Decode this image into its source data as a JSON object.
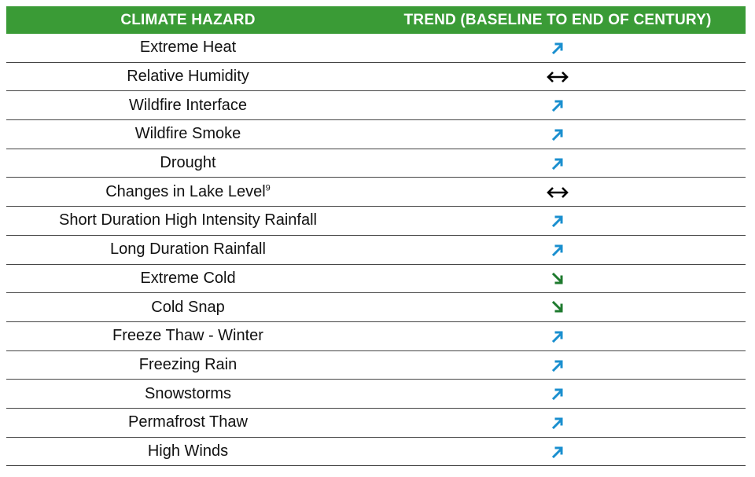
{
  "table": {
    "headers": [
      "CLIMATE HAZARD",
      "TREND  (BASELINE TO END OF CENTURY)"
    ],
    "colors": {
      "header_bg": "#3a9b36",
      "increase": "#1a8fcf",
      "decrease": "#1e7a2e",
      "no_change": "#000000"
    },
    "rows": [
      {
        "hazard": "Extreme Heat",
        "sup": "",
        "trend": "increase"
      },
      {
        "hazard": "Relative Humidity",
        "sup": "",
        "trend": "no-change"
      },
      {
        "hazard": "Wildfire Interface",
        "sup": "",
        "trend": "increase"
      },
      {
        "hazard": "Wildfire Smoke",
        "sup": "",
        "trend": "increase"
      },
      {
        "hazard": "Drought",
        "sup": "",
        "trend": "increase"
      },
      {
        "hazard": "Changes in Lake Level",
        "sup": "9",
        "trend": "no-change"
      },
      {
        "hazard": "Short Duration High Intensity Rainfall",
        "sup": "",
        "trend": "increase"
      },
      {
        "hazard": "Long Duration Rainfall",
        "sup": "",
        "trend": "increase"
      },
      {
        "hazard": "Extreme Cold",
        "sup": "",
        "trend": "decrease"
      },
      {
        "hazard": "Cold Snap",
        "sup": "",
        "trend": "decrease"
      },
      {
        "hazard": "Freeze Thaw - Winter",
        "sup": "",
        "trend": "increase"
      },
      {
        "hazard": "Freezing Rain",
        "sup": "",
        "trend": "increase"
      },
      {
        "hazard": "Snowstorms",
        "sup": "",
        "trend": "increase"
      },
      {
        "hazard": "Permafrost Thaw",
        "sup": "",
        "trend": "increase"
      },
      {
        "hazard": "High Winds",
        "sup": "",
        "trend": "increase"
      }
    ]
  }
}
